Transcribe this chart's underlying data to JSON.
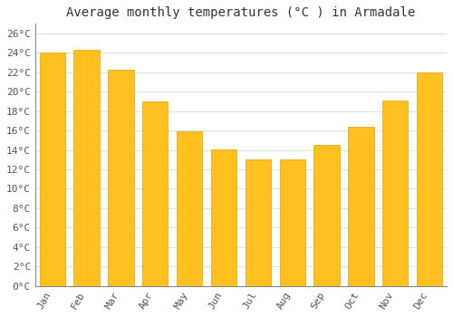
{
  "title": "Average monthly temperatures (°C ) in Armadale",
  "months": [
    "Jan",
    "Feb",
    "Mar",
    "Apr",
    "May",
    "Jun",
    "Jul",
    "Aug",
    "Sep",
    "Oct",
    "Nov",
    "Dec"
  ],
  "values": [
    24.0,
    24.3,
    22.3,
    19.0,
    15.9,
    14.1,
    13.0,
    13.0,
    14.5,
    16.4,
    19.1,
    22.0
  ],
  "bar_color": "#FFC020",
  "bar_edge_color": "#E8A000",
  "background_color": "#FFFFFF",
  "grid_color": "#DDDDDD",
  "ylim": [
    0,
    27
  ],
  "title_fontsize": 10,
  "tick_fontsize": 8,
  "font_family": "monospace"
}
